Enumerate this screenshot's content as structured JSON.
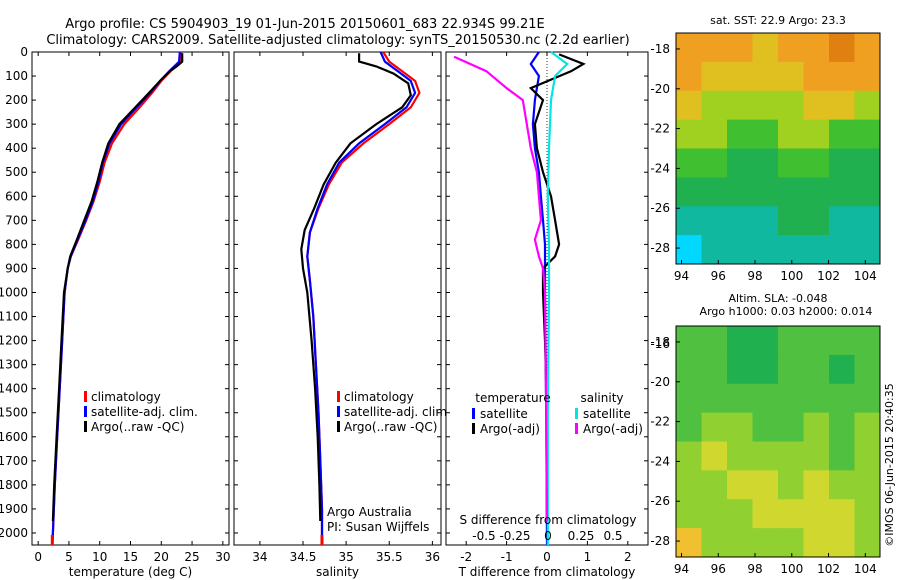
{
  "header": {
    "line1": "Argo profile: CS 5904903_19 01-Jun-2015 20150601_683 22.934S 99.21E",
    "line2": "Climatology: CARS2009. Satellite-adjusted climatology: synTS_20150530.nc (2.2d earlier)"
  },
  "credit": "©IMOS 06-Jun-2015 20:40:35",
  "colors": {
    "climatology": "#ff0000",
    "satellite": "#0000ff",
    "argo": "#000000",
    "sal_satellite": "#00e6e6",
    "sal_argo": "#ff00ff"
  },
  "chart_data": [
    {
      "type": "line",
      "id": "temperature",
      "xlabel": "temperature (deg C)",
      "ylabel": "",
      "xlim": [
        -1,
        31
      ],
      "ylim": [
        2050,
        0
      ],
      "xticks": [
        0,
        5,
        10,
        15,
        20,
        25,
        30
      ],
      "yticks": [
        0,
        100,
        200,
        300,
        400,
        500,
        600,
        700,
        800,
        900,
        1000,
        1100,
        1200,
        1300,
        1400,
        1500,
        1600,
        1700,
        1800,
        1900,
        2000
      ],
      "legend": [
        "climatology",
        "satellite-adj. clim.",
        "Argo(..raw -QC)"
      ],
      "series": [
        {
          "name": "climatology",
          "color": "#ff0000",
          "points": [
            [
              23.2,
              0
            ],
            [
              23.1,
              40
            ],
            [
              21.5,
              80
            ],
            [
              20,
              120
            ],
            [
              18.5,
              170
            ],
            [
              16.5,
              230
            ],
            [
              14,
              300
            ],
            [
              12,
              380
            ],
            [
              10.8,
              460
            ],
            [
              10,
              540
            ],
            [
              9,
              620
            ],
            [
              7.8,
              700
            ],
            [
              6.5,
              780
            ],
            [
              5.3,
              850
            ],
            [
              4.8,
              900
            ],
            [
              4.3,
              1000
            ],
            [
              3.9,
              1200
            ],
            [
              3.5,
              1400
            ],
            [
              3.1,
              1600
            ],
            [
              2.7,
              1800
            ],
            [
              2.4,
              2000
            ],
            [
              2.3,
              2050
            ]
          ]
        },
        {
          "name": "satellite-adj. clim.",
          "color": "#0000ff",
          "points": [
            [
              23.0,
              0
            ],
            [
              22.9,
              40
            ],
            [
              21.3,
              80
            ],
            [
              19.8,
              120
            ],
            [
              18.2,
              170
            ],
            [
              16,
              230
            ],
            [
              13.5,
              300
            ],
            [
              11.6,
              380
            ],
            [
              10.5,
              460
            ],
            [
              9.8,
              540
            ],
            [
              8.9,
              620
            ],
            [
              7.7,
              700
            ],
            [
              6.4,
              780
            ],
            [
              5.3,
              850
            ],
            [
              4.8,
              900
            ],
            [
              4.3,
              1000
            ],
            [
              3.9,
              1200
            ],
            [
              3.5,
              1400
            ],
            [
              3.1,
              1600
            ],
            [
              2.7,
              1800
            ],
            [
              2.4,
              2000
            ],
            [
              2.3,
              2050
            ]
          ]
        },
        {
          "name": "Argo(..raw -QC)",
          "color": "#000000",
          "points": [
            [
              23.4,
              5
            ],
            [
              23.4,
              40
            ],
            [
              22.5,
              60
            ],
            [
              21.4,
              80
            ],
            [
              19.8,
              120
            ],
            [
              18,
              170
            ],
            [
              15.8,
              230
            ],
            [
              13.2,
              300
            ],
            [
              11.4,
              380
            ],
            [
              10.4,
              460
            ],
            [
              9.6,
              540
            ],
            [
              8.7,
              620
            ],
            [
              7.5,
              700
            ],
            [
              6.3,
              780
            ],
            [
              5.2,
              850
            ],
            [
              4.8,
              900
            ],
            [
              4.2,
              1000
            ],
            [
              3.8,
              1200
            ],
            [
              3.4,
              1400
            ],
            [
              3.0,
              1600
            ],
            [
              2.6,
              1800
            ],
            [
              2.4,
              1950
            ]
          ]
        }
      ]
    },
    {
      "type": "line",
      "id": "salinity",
      "xlabel": "salinity",
      "ylabel": "",
      "xlim": [
        33.7,
        36.1
      ],
      "ylim": [
        2050,
        0
      ],
      "xticks": [
        34,
        34.5,
        35,
        35.5,
        36
      ],
      "legend": [
        "climatology",
        "satellite-adj. clim.",
        "Argo(..raw -QC)"
      ],
      "notes": [
        "Argo Australia",
        "PI: Susan Wijffels"
      ],
      "series": [
        {
          "name": "climatology",
          "color": "#ff0000",
          "points": [
            [
              35.43,
              0
            ],
            [
              35.5,
              40
            ],
            [
              35.65,
              80
            ],
            [
              35.8,
              120
            ],
            [
              35.85,
              170
            ],
            [
              35.75,
              230
            ],
            [
              35.5,
              300
            ],
            [
              35.2,
              380
            ],
            [
              34.95,
              460
            ],
            [
              34.8,
              550
            ],
            [
              34.68,
              650
            ],
            [
              34.58,
              750
            ],
            [
              34.55,
              850
            ],
            [
              34.58,
              950
            ],
            [
              34.62,
              1100
            ],
            [
              34.65,
              1300
            ],
            [
              34.68,
              1500
            ],
            [
              34.7,
              1700
            ],
            [
              34.72,
              1900
            ],
            [
              34.72,
              2050
            ]
          ]
        },
        {
          "name": "satellite-adj. clim.",
          "color": "#0000ff",
          "points": [
            [
              35.4,
              0
            ],
            [
              35.45,
              40
            ],
            [
              35.6,
              80
            ],
            [
              35.75,
              120
            ],
            [
              35.8,
              170
            ],
            [
              35.7,
              230
            ],
            [
              35.45,
              300
            ],
            [
              35.15,
              380
            ],
            [
              34.92,
              460
            ],
            [
              34.78,
              550
            ],
            [
              34.67,
              650
            ],
            [
              34.58,
              750
            ],
            [
              34.55,
              850
            ],
            [
              34.58,
              950
            ],
            [
              34.62,
              1100
            ],
            [
              34.65,
              1300
            ],
            [
              34.68,
              1500
            ],
            [
              34.7,
              1700
            ],
            [
              34.72,
              1900
            ],
            [
              34.72,
              2050
            ]
          ]
        },
        {
          "name": "Argo(..raw -QC)",
          "color": "#000000",
          "points": [
            [
              35.15,
              5
            ],
            [
              35.15,
              40
            ],
            [
              35.35,
              60
            ],
            [
              35.55,
              90
            ],
            [
              35.72,
              130
            ],
            [
              35.75,
              180
            ],
            [
              35.65,
              230
            ],
            [
              35.35,
              300
            ],
            [
              35.05,
              380
            ],
            [
              34.88,
              460
            ],
            [
              34.74,
              550
            ],
            [
              34.63,
              650
            ],
            [
              34.52,
              740
            ],
            [
              34.48,
              820
            ],
            [
              34.5,
              900
            ],
            [
              34.55,
              1000
            ],
            [
              34.6,
              1200
            ],
            [
              34.64,
              1400
            ],
            [
              34.67,
              1600
            ],
            [
              34.69,
              1800
            ],
            [
              34.7,
              1950
            ]
          ]
        }
      ]
    },
    {
      "type": "line",
      "id": "difference",
      "xlabel": "T difference from climatology",
      "xlabel2": "S difference from climatology",
      "ylabel": "",
      "xlim": [
        -2.5,
        2.5
      ],
      "ylim": [
        2050,
        0
      ],
      "xticks": [
        -2,
        -1,
        0,
        1,
        2
      ],
      "xticks2_labels": [
        "-0.5",
        "-0.25",
        "0",
        "0.25",
        "0.5"
      ],
      "legend_headers": [
        "temperature",
        "salinity"
      ],
      "legend": [
        "satellite",
        "Argo(-adj)",
        "satellite",
        "Argo(-adj)"
      ],
      "series": [
        {
          "name": "satellite",
          "group": "temperature",
          "color": "#0000ff",
          "points": [
            [
              -0.2,
              0
            ],
            [
              -0.4,
              50
            ],
            [
              -0.2,
              100
            ],
            [
              -0.3,
              200
            ],
            [
              -0.35,
              300
            ],
            [
              -0.3,
              400
            ],
            [
              -0.2,
              500
            ],
            [
              -0.15,
              600
            ],
            [
              -0.1,
              700
            ],
            [
              -0.05,
              800
            ],
            [
              -0.05,
              1000
            ],
            [
              -0.02,
              1500
            ],
            [
              0,
              2050
            ]
          ]
        },
        {
          "name": "Argo(-adj)",
          "group": "temperature",
          "color": "#000000",
          "points": [
            [
              0.3,
              10
            ],
            [
              0.9,
              50
            ],
            [
              0.6,
              80
            ],
            [
              -0.4,
              150
            ],
            [
              -0.1,
              200
            ],
            [
              -0.3,
              300
            ],
            [
              -0.25,
              400
            ],
            [
              -0.1,
              500
            ],
            [
              0.1,
              600
            ],
            [
              0.2,
              700
            ],
            [
              0.3,
              800
            ],
            [
              0.2,
              850
            ],
            [
              -0.1,
              900
            ],
            [
              -0.1,
              1000
            ],
            [
              -0.05,
              1200
            ],
            [
              0,
              1500
            ],
            [
              0,
              1950
            ]
          ]
        },
        {
          "name": "satellite",
          "group": "salinity",
          "color": "#00e6e6",
          "points": [
            [
              0.1,
              0
            ],
            [
              0.5,
              50
            ],
            [
              0.2,
              100
            ],
            [
              0.1,
              200
            ],
            [
              0.05,
              400
            ],
            [
              0.02,
              600
            ],
            [
              0.05,
              800
            ],
            [
              0.05,
              1000
            ],
            [
              0.02,
              1500
            ],
            [
              0.02,
              2050
            ]
          ]
        },
        {
          "name": "Argo(-adj)",
          "group": "salinity",
          "color": "#ff00ff",
          "points": [
            [
              -2.3,
              20
            ],
            [
              -1.5,
              80
            ],
            [
              -1.0,
              150
            ],
            [
              -0.6,
              200
            ],
            [
              -0.5,
              300
            ],
            [
              -0.4,
              400
            ],
            [
              -0.25,
              500
            ],
            [
              -0.2,
              600
            ],
            [
              -0.15,
              700
            ],
            [
              -0.3,
              780
            ],
            [
              -0.2,
              850
            ],
            [
              -0.1,
              900
            ],
            [
              -0.05,
              1000
            ],
            [
              -0.02,
              1500
            ],
            [
              0,
              1950
            ]
          ]
        }
      ]
    },
    {
      "type": "heatmap",
      "id": "sst",
      "title": "sat. SST: 22.9  Argo: 23.3",
      "xlim": [
        93.7,
        104.8
      ],
      "ylim": [
        -28.8,
        -17.2
      ],
      "xticks": [
        94,
        96,
        98,
        100,
        102,
        104
      ],
      "yticks": [
        -18,
        -20,
        -22,
        -24,
        -26,
        -28
      ],
      "colormap": [
        "#00d8ff",
        "#10b8a0",
        "#20b050",
        "#40c030",
        "#a0d020",
        "#e0c020",
        "#f0a020",
        "#e08010"
      ],
      "rows_north_to_south": [
        [
          0.85,
          0.8,
          0.85,
          0.75,
          0.8,
          0.9,
          0.95,
          0.9
        ],
        [
          0.8,
          0.75,
          0.7,
          0.65,
          0.7,
          0.85,
          0.85,
          0.8
        ],
        [
          0.65,
          0.6,
          0.55,
          0.55,
          0.6,
          0.7,
          0.65,
          0.6
        ],
        [
          0.55,
          0.5,
          0.45,
          0.45,
          0.5,
          0.5,
          0.45,
          0.45
        ],
        [
          0.4,
          0.4,
          0.35,
          0.35,
          0.4,
          0.4,
          0.35,
          0.35
        ],
        [
          0.3,
          0.28,
          0.25,
          0.25,
          0.3,
          0.3,
          0.25,
          0.28
        ],
        [
          0.15,
          0.12,
          0.15,
          0.2,
          0.25,
          0.22,
          0.18,
          0.2
        ],
        [
          0.05,
          0.08,
          0.1,
          0.15,
          0.2,
          0.18,
          0.15,
          0.12
        ]
      ]
    },
    {
      "type": "heatmap",
      "id": "sla",
      "title": "Altim. SLA: -0.048",
      "subtitle": "Argo h1000: 0.03 h2000: 0.014",
      "xlim": [
        93.7,
        104.8
      ],
      "ylim": [
        -28.8,
        -17.2
      ],
      "xticks": [
        94,
        96,
        98,
        100,
        102,
        104
      ],
      "yticks": [
        -16,
        -18,
        -20,
        -22,
        -24,
        -26,
        -28
      ],
      "colormap": [
        "#10a080",
        "#20b050",
        "#50c040",
        "#90d030",
        "#d0d830",
        "#f0c030"
      ],
      "rows_north_to_south": [
        [
          0.3,
          0.35,
          0.25,
          0.2,
          0.3,
          0.35,
          0.3,
          0.35
        ],
        [
          0.35,
          0.3,
          0.2,
          0.25,
          0.35,
          0.3,
          0.25,
          0.4
        ],
        [
          0.4,
          0.45,
          0.35,
          0.4,
          0.3,
          0.35,
          0.4,
          0.45
        ],
        [
          0.45,
          0.5,
          0.55,
          0.45,
          0.4,
          0.5,
          0.45,
          0.5
        ],
        [
          0.5,
          0.7,
          0.65,
          0.55,
          0.6,
          0.55,
          0.45,
          0.5
        ],
        [
          0.55,
          0.6,
          0.75,
          0.8,
          0.65,
          0.7,
          0.6,
          0.5
        ],
        [
          0.6,
          0.55,
          0.6,
          0.7,
          0.75,
          0.85,
          0.7,
          0.6
        ],
        [
          0.9,
          0.65,
          0.55,
          0.6,
          0.65,
          0.8,
          0.7,
          0.65
        ]
      ]
    }
  ]
}
